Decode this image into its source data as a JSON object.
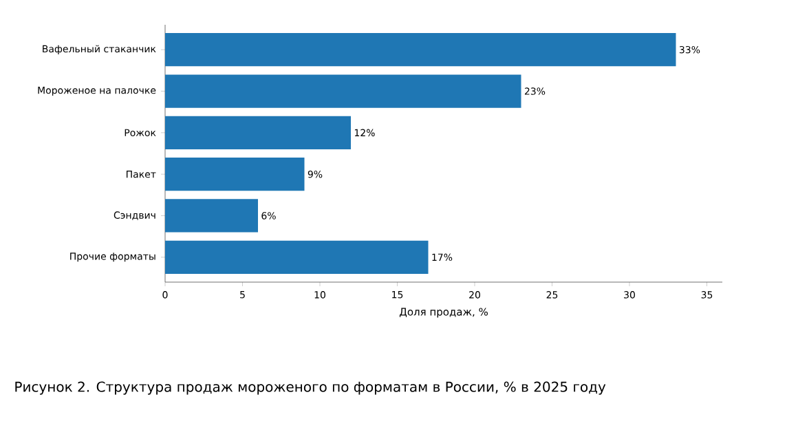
{
  "chart_data": {
    "type": "bar",
    "orientation": "horizontal",
    "categories": [
      "Вафельный стаканчик",
      "Мороженое на палочке",
      "Рожок",
      "Пакет",
      "Сэндвич",
      "Прочие форматы"
    ],
    "values": [
      33,
      23,
      12,
      9,
      6,
      17
    ],
    "value_labels": [
      "33%",
      "23%",
      "12%",
      "9%",
      "6%",
      "17%"
    ],
    "color": "#1f77b4",
    "xlabel": "Доля продаж, %",
    "xlim": [
      0,
      36
    ],
    "xticks": [
      0,
      5,
      10,
      15,
      20,
      25,
      30,
      35
    ],
    "annotations": [
      "Рисунок 2. Структура продаж мороженого по форматам в России, % в 2025 году"
    ]
  }
}
